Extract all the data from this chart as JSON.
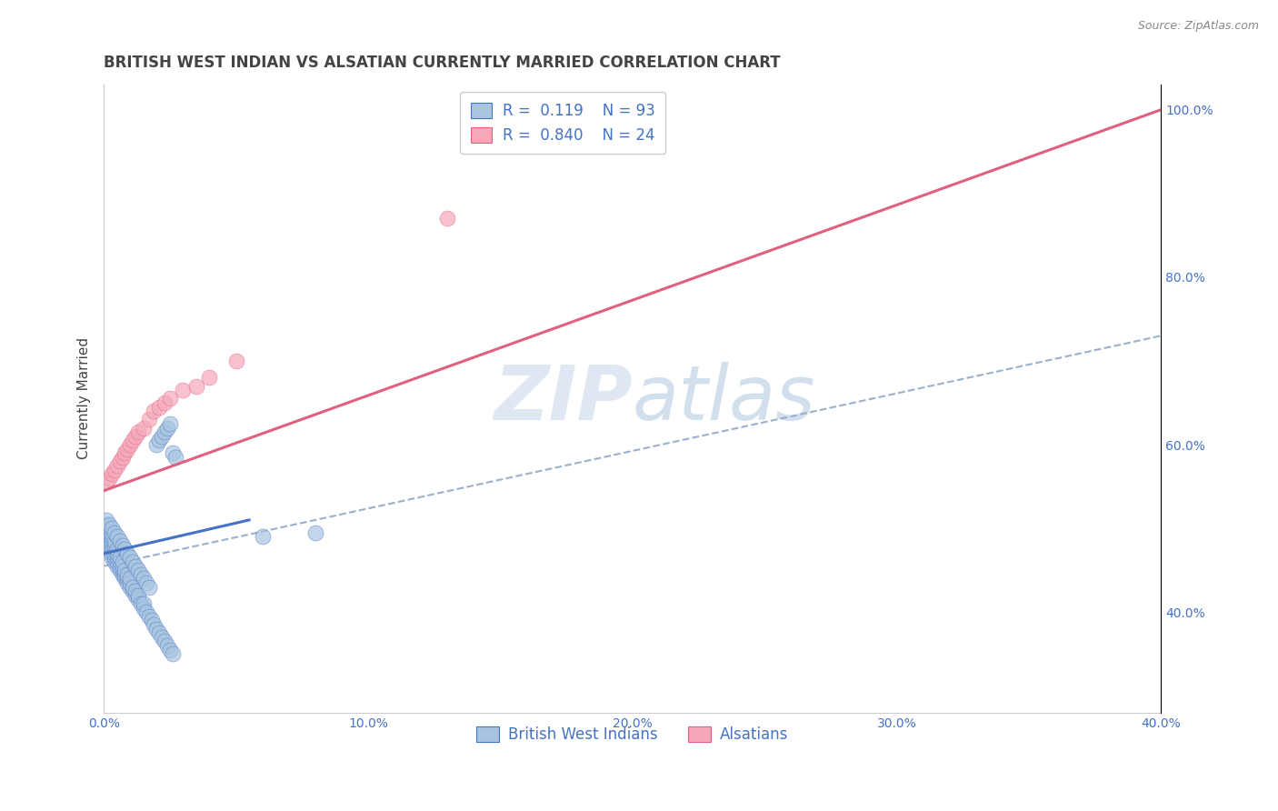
{
  "title": "BRITISH WEST INDIAN VS ALSATIAN CURRENTLY MARRIED CORRELATION CHART",
  "source": "Source: ZipAtlas.com",
  "ylabel": "Currently Married",
  "xlabel": "",
  "watermark": "ZIPatlas",
  "xlim": [
    0.0,
    0.4
  ],
  "ylim": [
    0.28,
    1.03
  ],
  "xtick_labels": [
    "0.0%",
    "10.0%",
    "20.0%",
    "30.0%",
    "40.0%"
  ],
  "xtick_vals": [
    0.0,
    0.1,
    0.2,
    0.3,
    0.4
  ],
  "ytick_labels": [
    "40.0%",
    "60.0%",
    "80.0%",
    "100.0%"
  ],
  "ytick_vals": [
    0.4,
    0.6,
    0.8,
    1.0
  ],
  "blue_R": 0.119,
  "blue_N": 93,
  "pink_R": 0.84,
  "pink_N": 24,
  "blue_color": "#a8c4e0",
  "pink_color": "#f4a8b8",
  "blue_line_color": "#4472c4",
  "pink_line_color": "#e06080",
  "trend_line_color": "#9ab0cc",
  "title_color": "#444444",
  "axis_label_color": "#4472c4",
  "legend_R_color": "#444444",
  "legend_N_color": "#4472c4",
  "blue_scatter_x": [
    0.001,
    0.001,
    0.001,
    0.001,
    0.001,
    0.002,
    0.002,
    0.002,
    0.002,
    0.002,
    0.002,
    0.003,
    0.003,
    0.003,
    0.003,
    0.003,
    0.003,
    0.003,
    0.004,
    0.004,
    0.004,
    0.004,
    0.004,
    0.004,
    0.005,
    0.005,
    0.005,
    0.005,
    0.005,
    0.006,
    0.006,
    0.006,
    0.006,
    0.007,
    0.007,
    0.007,
    0.007,
    0.008,
    0.008,
    0.008,
    0.009,
    0.009,
    0.009,
    0.01,
    0.01,
    0.01,
    0.011,
    0.011,
    0.012,
    0.012,
    0.013,
    0.013,
    0.014,
    0.015,
    0.015,
    0.016,
    0.017,
    0.018,
    0.019,
    0.02,
    0.021,
    0.022,
    0.023,
    0.024,
    0.025,
    0.026,
    0.001,
    0.002,
    0.003,
    0.004,
    0.005,
    0.006,
    0.007,
    0.008,
    0.009,
    0.01,
    0.011,
    0.012,
    0.013,
    0.014,
    0.015,
    0.016,
    0.017,
    0.06,
    0.08,
    0.02,
    0.021,
    0.022,
    0.023,
    0.024,
    0.025,
    0.026,
    0.027
  ],
  "blue_scatter_y": [
    0.48,
    0.49,
    0.495,
    0.5,
    0.505,
    0.475,
    0.48,
    0.485,
    0.49,
    0.495,
    0.5,
    0.465,
    0.47,
    0.475,
    0.48,
    0.485,
    0.49,
    0.495,
    0.46,
    0.465,
    0.47,
    0.475,
    0.48,
    0.485,
    0.455,
    0.46,
    0.465,
    0.47,
    0.475,
    0.45,
    0.455,
    0.46,
    0.465,
    0.445,
    0.45,
    0.455,
    0.46,
    0.44,
    0.445,
    0.45,
    0.435,
    0.44,
    0.445,
    0.43,
    0.435,
    0.44,
    0.425,
    0.43,
    0.42,
    0.425,
    0.415,
    0.42,
    0.41,
    0.405,
    0.41,
    0.4,
    0.395,
    0.39,
    0.385,
    0.38,
    0.375,
    0.37,
    0.365,
    0.36,
    0.355,
    0.35,
    0.51,
    0.505,
    0.5,
    0.495,
    0.49,
    0.485,
    0.48,
    0.475,
    0.47,
    0.465,
    0.46,
    0.455,
    0.45,
    0.445,
    0.44,
    0.435,
    0.43,
    0.49,
    0.495,
    0.6,
    0.605,
    0.61,
    0.615,
    0.62,
    0.625,
    0.59,
    0.585
  ],
  "pink_scatter_x": [
    0.001,
    0.002,
    0.003,
    0.004,
    0.005,
    0.006,
    0.007,
    0.008,
    0.009,
    0.01,
    0.011,
    0.012,
    0.013,
    0.015,
    0.017,
    0.019,
    0.021,
    0.023,
    0.025,
    0.03,
    0.035,
    0.04,
    0.05,
    0.13
  ],
  "pink_scatter_y": [
    0.555,
    0.56,
    0.565,
    0.57,
    0.575,
    0.58,
    0.585,
    0.59,
    0.595,
    0.6,
    0.605,
    0.61,
    0.615,
    0.62,
    0.63,
    0.64,
    0.645,
    0.65,
    0.655,
    0.665,
    0.67,
    0.68,
    0.7,
    0.87
  ],
  "blue_trend_x0": 0.0,
  "blue_trend_x1": 0.055,
  "blue_trend_y0": 0.47,
  "blue_trend_y1": 0.51,
  "pink_trend_x0": 0.0,
  "pink_trend_x1": 0.4,
  "pink_trend_y0": 0.545,
  "pink_trend_y1": 1.0,
  "dash_trend_x0": 0.0,
  "dash_trend_x1": 0.4,
  "dash_trend_y0": 0.455,
  "dash_trend_y1": 0.73,
  "legend_label_blue": "British West Indians",
  "legend_label_pink": "Alsatians",
  "background_color": "#ffffff",
  "grid_color": "#c8d4e4",
  "title_fontsize": 12,
  "axis_label_fontsize": 11,
  "tick_fontsize": 10,
  "legend_fontsize": 12
}
